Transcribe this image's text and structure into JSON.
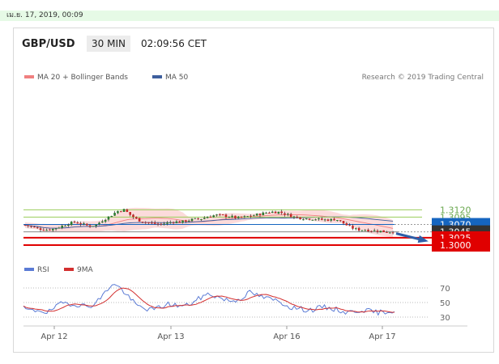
{
  "timestamp": "เม.ย. 17, 2019, 00:09",
  "header": {
    "symbol": "GBP/USD",
    "timeframe": "30 MIN",
    "time": "02:09:56 CET"
  },
  "legend": {
    "bollinger": "MA 20 + Bollinger Bands",
    "ma50": "MA 50",
    "credit": "Research © 2019 Trading Central"
  },
  "rsi_legend": {
    "rsi": "RSI",
    "ma9": "9MA"
  },
  "colors": {
    "bull": "#2e7d32",
    "bear": "#c62828",
    "band": "#fbd5d5",
    "ma50": "#3e5f9e",
    "support": "#e00000",
    "resistance_blue": "#1565c0",
    "resistance_green": "#9acd5a",
    "arrow": "#2e5ea8",
    "rsi": "#5b7bd5",
    "rsi_ma": "#d32f2f"
  },
  "chart_data": [
    {
      "type": "candlestick",
      "title": "GBP/USD",
      "x_ticks": [
        "Apr 12",
        "Apr 13",
        "Apr 16",
        "Apr 17"
      ],
      "ylim": [
        1.299,
        1.3135
      ],
      "levels": [
        {
          "label": "1.3120",
          "value": 1.312,
          "kind": "resistance_green",
          "tag": "text"
        },
        {
          "label": "1.3095",
          "value": 1.3095,
          "kind": "resistance_green",
          "tag": "text"
        },
        {
          "label": "1.3070",
          "value": 1.307,
          "kind": "resistance_blue",
          "tag": "box"
        },
        {
          "label": "1.3045",
          "value": 1.3045,
          "kind": "last",
          "tag": "box"
        },
        {
          "label": "1.3025",
          "value": 1.3025,
          "kind": "support",
          "tag": "box"
        },
        {
          "label": "1.3000",
          "value": 1.3,
          "kind": "support",
          "tag": "box"
        }
      ],
      "price_path": [
        1.3068,
        1.3062,
        1.3055,
        1.3052,
        1.3055,
        1.3063,
        1.3072,
        1.3078,
        1.3072,
        1.3065,
        1.3068,
        1.3085,
        1.3098,
        1.3115,
        1.312,
        1.31,
        1.3085,
        1.3078,
        1.3074,
        1.307,
        1.3075,
        1.308,
        1.3078,
        1.3084,
        1.3088,
        1.309,
        1.3098,
        1.3102,
        1.31,
        1.3097,
        1.3092,
        1.3095,
        1.31,
        1.3104,
        1.311,
        1.3113,
        1.3112,
        1.3104,
        1.3096,
        1.3092,
        1.309,
        1.3089,
        1.3086,
        1.3086,
        1.3088,
        1.3074,
        1.306,
        1.3052,
        1.3052,
        1.305,
        1.3048,
        1.3045,
        1.3045
      ],
      "candle_count": 120,
      "forecast": {
        "from": 1.3045,
        "to": 1.3
      }
    },
    {
      "type": "line",
      "title": "RSI",
      "series": [
        {
          "name": "RSI"
        },
        {
          "name": "9MA"
        }
      ],
      "y_ticks": [
        70,
        50,
        30
      ],
      "ylim": [
        20,
        85
      ],
      "rsi_path": [
        42,
        38,
        40,
        36,
        44,
        50,
        48,
        47,
        44,
        50,
        62,
        76,
        70,
        58,
        46,
        42,
        40,
        44,
        48,
        46,
        45,
        50,
        57,
        62,
        58,
        54,
        52,
        56,
        64,
        60,
        56,
        54,
        50,
        44,
        42,
        40,
        40,
        44,
        42,
        40,
        36,
        38,
        40,
        38,
        36,
        38,
        38
      ]
    }
  ]
}
